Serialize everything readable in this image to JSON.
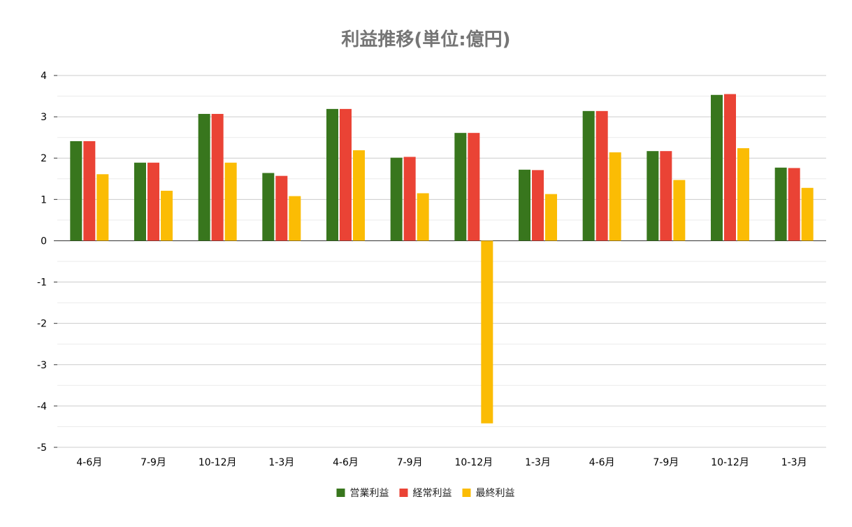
{
  "chart_data": {
    "type": "bar",
    "title": "利益推移(単位:億円)",
    "xlabel": "",
    "ylabel": "",
    "ylim": [
      -5,
      4
    ],
    "yticks": [
      "4",
      "3",
      "2",
      "1",
      "0",
      "-1",
      "-2",
      "-3",
      "-4",
      "-5"
    ],
    "ytick_values": [
      4,
      3,
      2,
      1,
      0,
      -1,
      -2,
      -3,
      -4,
      -5
    ],
    "grid": true,
    "legend_position": "bottom",
    "categories": [
      "4-6月",
      "7-9月",
      "10-12月",
      "1-3月",
      "4-6月",
      "7-9月",
      "10-12月",
      "1-3月",
      "4-6月",
      "7-9月",
      "10-12月",
      "1-3月"
    ],
    "series": [
      {
        "name": "営業利益",
        "color": "#38761d",
        "values": [
          2.41,
          1.89,
          3.07,
          1.64,
          3.19,
          2.01,
          2.61,
          1.72,
          3.14,
          2.17,
          3.53,
          1.77
        ]
      },
      {
        "name": "経常利益",
        "color": "#ea4335",
        "values": [
          2.41,
          1.89,
          3.07,
          1.57,
          3.19,
          2.03,
          2.61,
          1.71,
          3.14,
          2.17,
          3.55,
          1.76
        ]
      },
      {
        "name": "最終利益",
        "color": "#fbbc04",
        "values": [
          1.61,
          1.21,
          1.89,
          1.08,
          2.19,
          1.15,
          -4.42,
          1.13,
          2.14,
          1.47,
          2.24,
          1.28
        ]
      }
    ]
  }
}
